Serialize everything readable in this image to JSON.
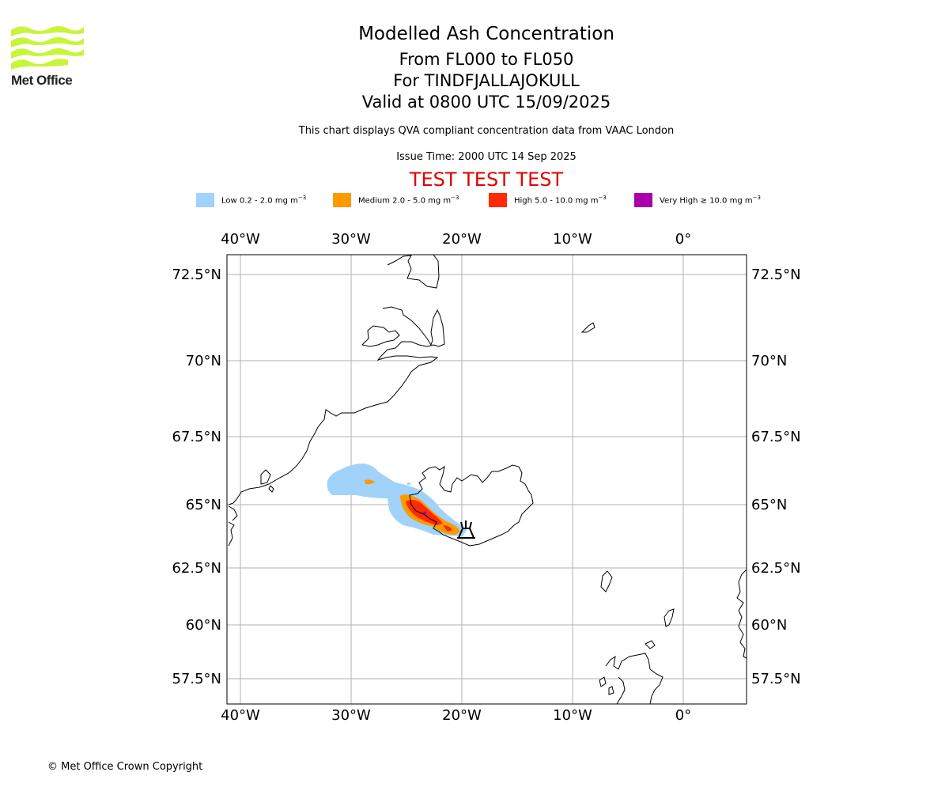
{
  "logo": {
    "name": "Met Office"
  },
  "header": {
    "title": "Modelled Ash Concentration",
    "levels": "From FL000 to FL050",
    "volcano": "For TINDFJALLAJOKULL",
    "valid": "Valid at 0800 UTC 15/09/2025",
    "description": "This chart displays QVA compliant concentration data from VAAC London",
    "issue_time": "Issue Time: 2000 UTC 14 Sep 2025",
    "test_banner": "TEST TEST TEST"
  },
  "legend": [
    {
      "label": "Low 0.2 - 2.0 mg m",
      "exponent": "−3",
      "color": "#a0d2fa"
    },
    {
      "label": "Medium 2.0 - 5.0 mg m",
      "exponent": "−3",
      "color": "#ff9900"
    },
    {
      "label": "High 5.0 - 10.0 mg m",
      "exponent": "−3",
      "color": "#ff2a00"
    },
    {
      "label": "Very High ≥ 10.0 mg m",
      "exponent": "−3",
      "color": "#aa00aa"
    }
  ],
  "map": {
    "lon_labels": [
      "40°W",
      "30°W",
      "20°W",
      "10°W",
      "0°"
    ],
    "lat_labels": [
      "72.5°N",
      "70°N",
      "67.5°N",
      "65°N",
      "62.5°N",
      "60°N",
      "57.5°N"
    ],
    "lon_values": [
      -40,
      -30,
      -20,
      -10,
      0
    ],
    "lat_values": [
      72.5,
      70,
      67.5,
      65,
      62.5,
      60,
      57.5
    ],
    "volcano_marker": "volcano-icon"
  },
  "footer": {
    "copyright": "© Met Office Crown Copyright"
  }
}
